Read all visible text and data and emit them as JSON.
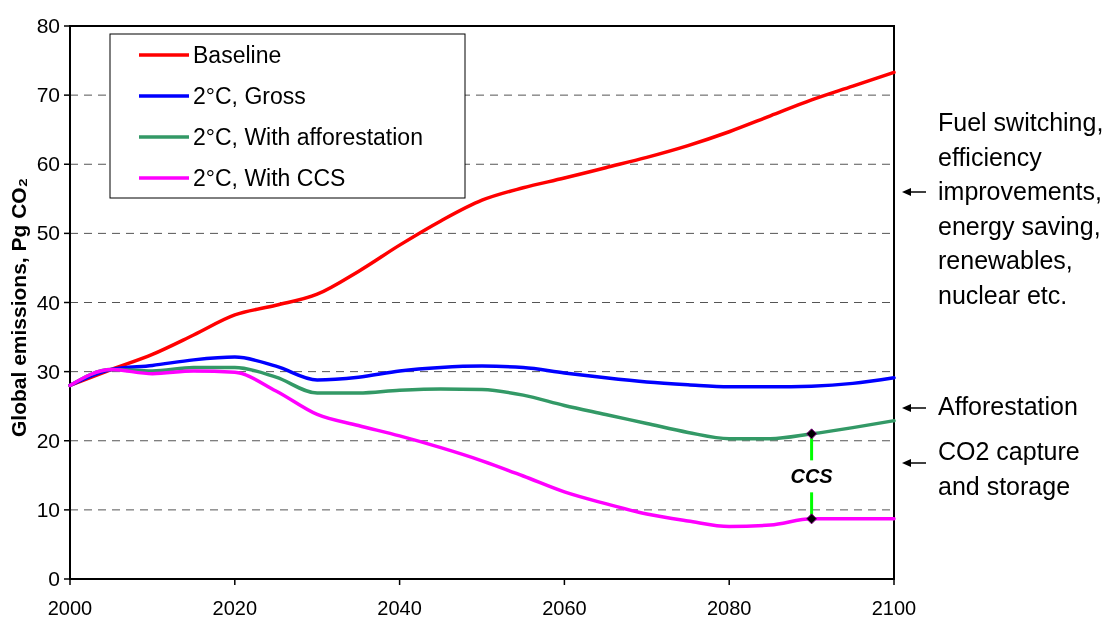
{
  "chart_data": {
    "type": "line",
    "ylabel": "Global emissions, Pg CO₂",
    "x": [
      2000,
      2005,
      2010,
      2015,
      2020,
      2025,
      2030,
      2035,
      2040,
      2045,
      2050,
      2055,
      2060,
      2065,
      2070,
      2075,
      2080,
      2085,
      2090,
      2095,
      2100
    ],
    "series": [
      {
        "name": "Baseline",
        "color": "#ff0000",
        "values": [
          28,
          30.3,
          32.5,
          35.3,
          38.2,
          39.6,
          41.2,
          44.5,
          48.3,
          51.8,
          54.8,
          56.6,
          58,
          59.5,
          61,
          62.7,
          64.7,
          67,
          69.3,
          71.3,
          73.3
        ]
      },
      {
        "name": "2°C, Gross",
        "color": "#0000ff",
        "values": [
          28,
          30.3,
          30.9,
          31.7,
          32.1,
          30.8,
          28.8,
          29.2,
          30.1,
          30.6,
          30.8,
          30.6,
          29.8,
          29.1,
          28.5,
          28.1,
          27.8,
          27.8,
          27.9,
          28.3,
          29.1
        ]
      },
      {
        "name": "2°C, With afforestation",
        "color": "#339966",
        "values": [
          28,
          30.3,
          30.1,
          30.6,
          30.6,
          29.2,
          26.9,
          26.9,
          27.3,
          27.5,
          27.4,
          26.6,
          25.1,
          23.8,
          22.5,
          21.2,
          20.3,
          20.3,
          21,
          21.9,
          22.9
        ]
      },
      {
        "name": "2°C, With CCS",
        "color": "#ff00ff",
        "values": [
          28,
          30.3,
          29.7,
          30.1,
          29.9,
          27.2,
          23.8,
          22.2,
          20.7,
          19,
          17.1,
          14.9,
          12.6,
          10.9,
          9.4,
          8.4,
          7.6,
          7.8,
          8.7,
          8.7,
          8.7
        ]
      }
    ],
    "xlim": [
      2000,
      2100
    ],
    "xticks": [
      2000,
      2020,
      2040,
      2060,
      2080,
      2100
    ],
    "ylim": [
      0,
      80
    ],
    "yticks": [
      0,
      10,
      20,
      30,
      40,
      50,
      60,
      70,
      80
    ],
    "grid": "y",
    "legend": "top left",
    "marker": "none",
    "line_style": "solid",
    "annotations": [
      {
        "text": "CCS",
        "x": 2090,
        "y": 21
      },
      "Fuel switching,\nefficiency\nimprovements,\nenergy saving,\nrenewables,\nnuclear etc.",
      "Afforestation",
      "CO2 capture\nand storage"
    ]
  }
}
